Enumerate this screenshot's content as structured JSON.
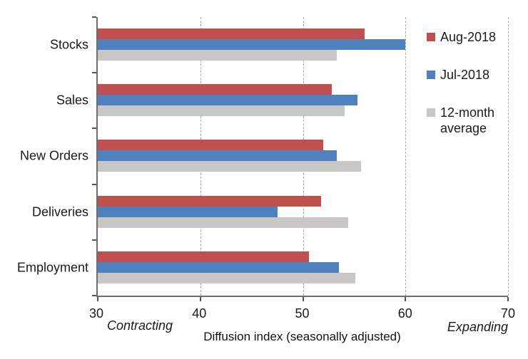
{
  "chart_data": {
    "type": "bar",
    "orientation": "horizontal",
    "title": "",
    "categories": [
      "Stocks",
      "Sales",
      "New Orders",
      "Deliveries",
      "Employment"
    ],
    "series": [
      {
        "name": "Aug-2018",
        "color": "#C0504D",
        "values": [
          56.0,
          52.8,
          52.0,
          51.8,
          50.6
        ]
      },
      {
        "name": "Jul-2018",
        "color": "#4E81BD",
        "values": [
          60.0,
          55.3,
          53.3,
          47.5,
          53.5
        ]
      },
      {
        "name": "12-month average",
        "color": "#C8C7C5",
        "values": [
          53.3,
          54.1,
          55.7,
          54.4,
          55.1
        ]
      }
    ],
    "xlabel": "Diffusion index (seasonally adjusted)",
    "xlim": [
      30,
      70
    ],
    "xticks": [
      30,
      40,
      50,
      60,
      70
    ],
    "grid": "vertical-dashed",
    "legend_position": "right-top",
    "annotations": {
      "left": "Contracting",
      "right": "Expanding"
    }
  },
  "colors": {
    "axis": "#6e6e6e",
    "gridline": "#aaaaaa",
    "text": "#1a1a1a"
  }
}
